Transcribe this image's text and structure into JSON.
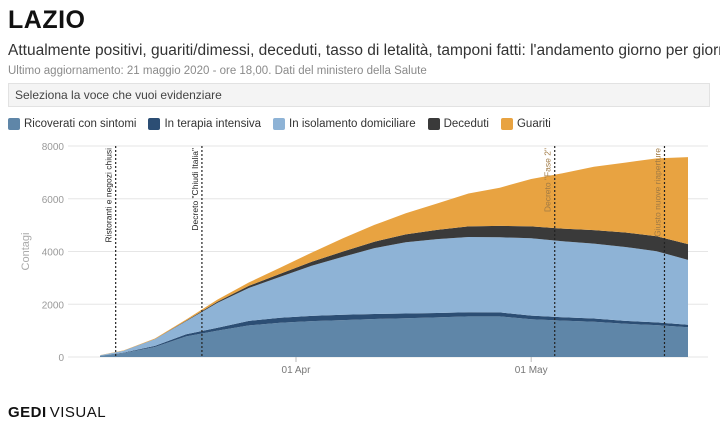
{
  "header": {
    "title": "LAZIO",
    "subtitle": "Attualmente positivi, guariti/dimessi, deceduti, tasso di letalità, tamponi fatti: l'andamento giorno per giorno",
    "note": "Ultimo aggiornamento: 21 maggio 2020 - ore 18,00. Dati del ministero della Salute"
  },
  "selector": {
    "label": "Seleziona la voce che vuoi evidenziare"
  },
  "footer": {
    "brand": "GEDI",
    "brand_suffix": "VISUAL"
  },
  "colors": {
    "ricoverati": "#5f86a8",
    "terapia": "#2c4e74",
    "isolamento": "#8eb3d6",
    "deceduti": "#3a3a3a",
    "guariti": "#e8a341",
    "grid": "#e6e6e6"
  },
  "chart_data": {
    "type": "area",
    "stacked": true,
    "ylabel": "Contagi",
    "xlabel": "",
    "ylim": [
      0,
      8000
    ],
    "yticks": [
      0,
      2000,
      4000,
      6000,
      8000
    ],
    "x_start": "2020-03-07",
    "x_end": "2020-05-21",
    "xticks": [
      {
        "date": "2020-04-01",
        "label": "01 Apr"
      },
      {
        "date": "2020-05-01",
        "label": "01 May"
      }
    ],
    "grid": true,
    "legend_position": "top",
    "x": [
      "2020-03-07",
      "2020-03-10",
      "2020-03-14",
      "2020-03-18",
      "2020-03-22",
      "2020-03-26",
      "2020-03-30",
      "2020-04-03",
      "2020-04-07",
      "2020-04-11",
      "2020-04-15",
      "2020-04-19",
      "2020-04-23",
      "2020-04-27",
      "2020-05-01",
      "2020-05-05",
      "2020-05-09",
      "2020-05-13",
      "2020-05-17",
      "2020-05-21"
    ],
    "series": [
      {
        "name": "Ricoverati con sintomi",
        "color": "#5f86a8",
        "values": [
          40,
          150,
          380,
          780,
          1000,
          1200,
          1300,
          1360,
          1400,
          1440,
          1470,
          1500,
          1540,
          1540,
          1430,
          1380,
          1340,
          1260,
          1210,
          1130
        ]
      },
      {
        "name": "In terapia intensiva",
        "color": "#2c4e74",
        "values": [
          5,
          15,
          40,
          80,
          110,
          170,
          190,
          200,
          200,
          190,
          180,
          170,
          160,
          150,
          140,
          130,
          120,
          110,
          100,
          90
        ]
      },
      {
        "name": "In isolamento domiciliare",
        "color": "#8eb3d6",
        "values": [
          20,
          70,
          250,
          500,
          950,
          1250,
          1550,
          1900,
          2200,
          2500,
          2700,
          2800,
          2850,
          2850,
          2930,
          2880,
          2840,
          2800,
          2700,
          2460
        ]
      },
      {
        "name": "Deceduti",
        "color": "#3a3a3a",
        "values": [
          2,
          5,
          10,
          20,
          40,
          80,
          120,
          150,
          200,
          240,
          300,
          350,
          400,
          430,
          450,
          480,
          510,
          550,
          570,
          600
        ]
      },
      {
        "name": "Guariti",
        "color": "#e8a341",
        "values": [
          5,
          10,
          20,
          40,
          80,
          130,
          230,
          350,
          500,
          640,
          800,
          1000,
          1250,
          1450,
          1800,
          2100,
          2400,
          2650,
          2950,
          3300
        ]
      }
    ],
    "annotations": [
      {
        "date": "2020-03-09",
        "label": "Ristoranti e negozi chiusi"
      },
      {
        "date": "2020-03-20",
        "label": "Decreto \"Chiudi Italia\""
      },
      {
        "date": "2020-05-04",
        "label": "Decreto \"Fase 2\""
      },
      {
        "date": "2020-05-18",
        "label": "Giusto nuove riaperture"
      }
    ]
  }
}
